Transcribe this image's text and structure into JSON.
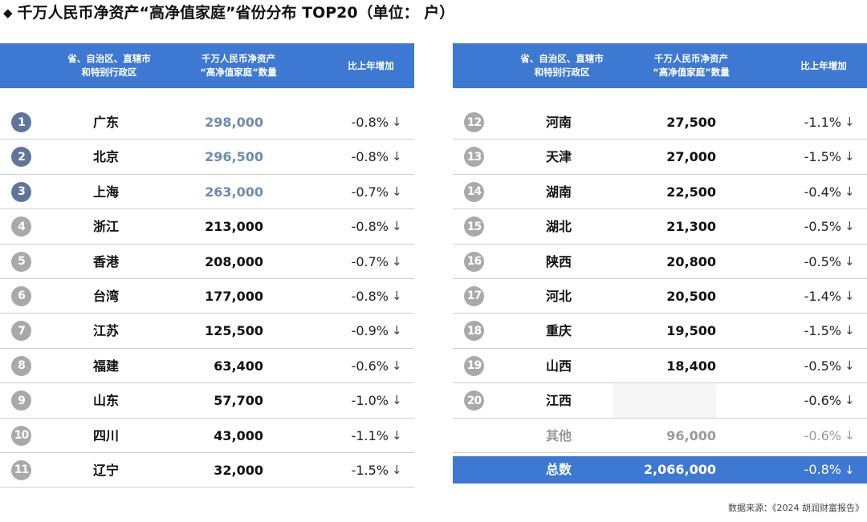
{
  "title": "千万人民币净资产“高净值家庭”省份分布 TOP20（单位： 户）",
  "header": {
    "col1": "省、自治区、直辖市\n和特别行政区",
    "col2": "千万人民币净资产\n“高净值家庭”数量",
    "col3": "比上年增加"
  },
  "left_rows": [
    {
      "rank": "1",
      "name": "广东",
      "count": "298,000",
      "change": "-0.8%"
    },
    {
      "rank": "2",
      "name": "北京",
      "count": "296,500",
      "change": "-0.8%"
    },
    {
      "rank": "3",
      "name": "上海",
      "count": "263,000",
      "change": "-0.7%"
    },
    {
      "rank": "4",
      "name": "浙江",
      "count": "213,000",
      "change": "-0.8%"
    },
    {
      "rank": "5",
      "name": "香港",
      "count": "208,000",
      "change": "-0.7%"
    },
    {
      "rank": "6",
      "name": "台湾",
      "count": "177,000",
      "change": "-0.8%"
    },
    {
      "rank": "7",
      "name": "江苏",
      "count": "125,500",
      "change": "-0.9%"
    },
    {
      "rank": "8",
      "name": "福建",
      "count": "63,400",
      "change": "-0.6%"
    },
    {
      "rank": "9",
      "name": "山东",
      "count": "57,700",
      "change": "-1.0%"
    },
    {
      "rank": "10",
      "name": "四川",
      "count": "43,000",
      "change": "-1.1%"
    },
    {
      "rank": "11",
      "name": "辽宁",
      "count": "32,000",
      "change": "-1.5%"
    }
  ],
  "right_rows": [
    {
      "rank": "12",
      "name": "河南",
      "count": "27,500",
      "change": "-1.1%"
    },
    {
      "rank": "13",
      "name": "天津",
      "count": "27,000",
      "change": "-1.5%"
    },
    {
      "rank": "14",
      "name": "湖南",
      "count": "22,500",
      "change": "-0.4%"
    },
    {
      "rank": "15",
      "name": "湖北",
      "count": "21,300",
      "change": "-0.5%"
    },
    {
      "rank": "16",
      "name": "陕西",
      "count": "20,800",
      "change": "-0.5%"
    },
    {
      "rank": "17",
      "name": "河北",
      "count": "20,500",
      "change": "-1.4%"
    },
    {
      "rank": "18",
      "name": "重庆",
      "count": "19,500",
      "change": "-1.5%"
    },
    {
      "rank": "19",
      "name": "山西",
      "count": "18,400",
      "change": "-0.5%"
    },
    {
      "rank": "20",
      "name": "江西",
      "count": "",
      "change": "-0.6%"
    }
  ],
  "other_row": {
    "name": "其他",
    "count": "96,000",
    "change": "-0.6%"
  },
  "total_row": {
    "name": "总数",
    "count": "2,066,000",
    "change": "-0.8%"
  },
  "arrow_glyph": "↓",
  "source": "数据来源：《2024 胡润财富报告》",
  "colors": {
    "header_bg": "#3d79d2",
    "rank_top": "#5f759a",
    "rank_other": "#a9a9a9",
    "muted_number": "#6f8bb2"
  }
}
